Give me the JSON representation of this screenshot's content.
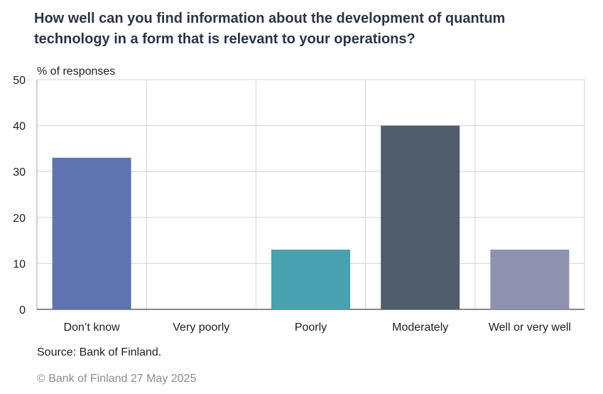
{
  "chart_data": {
    "type": "bar",
    "title_lines": [
      "How well can you find information about the development of quantum",
      "technology in a form that is relevant to your operations?"
    ],
    "ylabel": "% of responses",
    "xlabel": "",
    "categories": [
      "Don’t know",
      "Very poorly",
      "Poorly",
      "Moderately",
      "Well or very well"
    ],
    "values": [
      33,
      0,
      13,
      40,
      13
    ],
    "bar_colors": [
      "#5f73b0",
      "#5f73b0",
      "#47a1b0",
      "#505d6d",
      "#8c92b0"
    ],
    "ylim": [
      0,
      50
    ],
    "yticks": [
      0,
      10,
      20,
      30,
      40,
      50
    ],
    "grid": true,
    "legend": "none"
  },
  "footer": {
    "source": "Source: Bank of Finland.",
    "copyright": "© Bank of Finland 27 May 2025"
  }
}
